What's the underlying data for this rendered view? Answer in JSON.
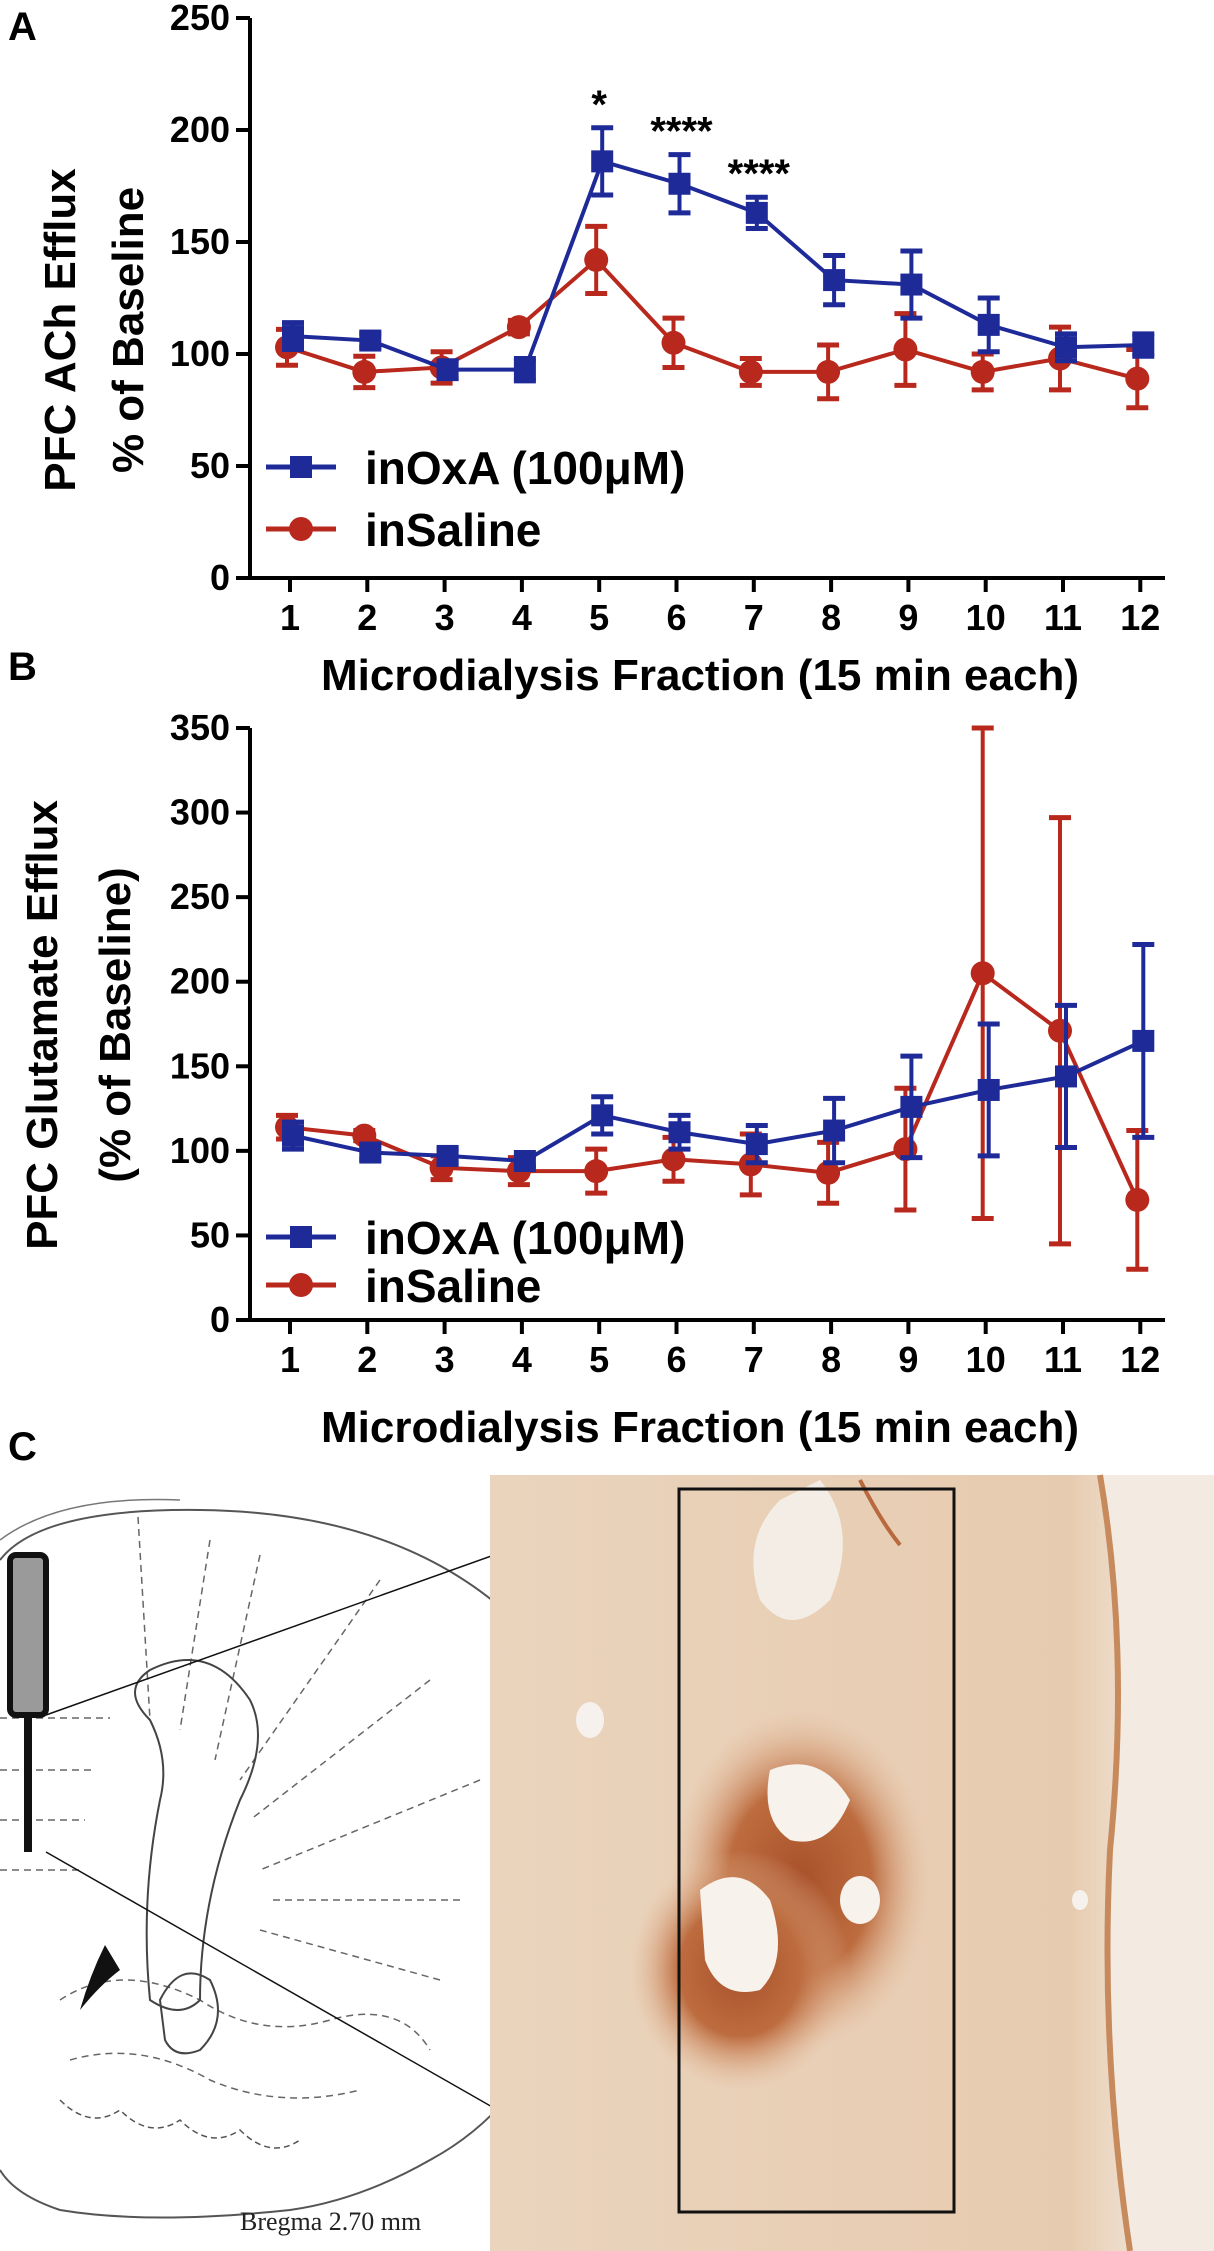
{
  "panels": {
    "a": "A",
    "b": "B",
    "c": "C"
  },
  "colors": {
    "inOxA": "#1f2a99",
    "inSaline": "#b8281d"
  },
  "chart_data": [
    {
      "id": "A",
      "type": "line",
      "xlabel": "Microdialysis Fraction (15 min each)",
      "ylabel_lines": [
        "PFC ACh  Efflux",
        "% of Baseline"
      ],
      "categories": [
        "1",
        "2",
        "3",
        "4",
        "5",
        "6",
        "7",
        "8",
        "9",
        "10",
        "11",
        "12"
      ],
      "ylim": [
        0,
        250
      ],
      "yticks": [
        0,
        50,
        100,
        150,
        200,
        250
      ],
      "legend": [
        "inOxA (100μM)",
        "inSaline"
      ],
      "series": [
        {
          "name": "inOxA (100μM)",
          "marker": "square",
          "color": "#1f2a99",
          "values": [
            108,
            106,
            93,
            93,
            186,
            176,
            163,
            133,
            131,
            113,
            103,
            104
          ],
          "errors": [
            6,
            3,
            4,
            5,
            15,
            13,
            7,
            11,
            15,
            12,
            6,
            5
          ]
        },
        {
          "name": "inSaline",
          "marker": "circle",
          "color": "#b8281d",
          "values": [
            103,
            92,
            94,
            112,
            142,
            105,
            92,
            92,
            102,
            92,
            98,
            89
          ],
          "errors": [
            8,
            7,
            7,
            3,
            15,
            11,
            6,
            12,
            16,
            8,
            14,
            13
          ]
        }
      ],
      "annotations": [
        {
          "label": "*",
          "category": "5"
        },
        {
          "label": "****",
          "category": "6"
        },
        {
          "label": "****",
          "category": "7"
        }
      ]
    },
    {
      "id": "B",
      "type": "line",
      "xlabel": "Microdialysis  Fraction (15 min each)",
      "ylabel_lines": [
        "PFC  Glutamate  Efflux",
        "(% of  Baseline)"
      ],
      "categories": [
        "1",
        "2",
        "3",
        "4",
        "5",
        "6",
        "7",
        "8",
        "9",
        "10",
        "11",
        "12"
      ],
      "ylim": [
        0,
        350
      ],
      "yticks": [
        0,
        50,
        100,
        150,
        200,
        250,
        300,
        350
      ],
      "legend": [
        "inOxA (100μM)",
        "inSaline"
      ],
      "series": [
        {
          "name": "inOxA (100μM)",
          "marker": "square",
          "color": "#1f2a99",
          "values": [
            109,
            99,
            97,
            94,
            121,
            111,
            104,
            112,
            126,
            136,
            144,
            165
          ],
          "errors": [
            8,
            4,
            4,
            3,
            11,
            10,
            11,
            19,
            30,
            39,
            42,
            57
          ]
        },
        {
          "name": "inSaline",
          "marker": "circle",
          "color": "#b8281d",
          "values": [
            114,
            109,
            90,
            88,
            88,
            95,
            92,
            87,
            101,
            205,
            171,
            71
          ],
          "errors": [
            7,
            3,
            7,
            8,
            13,
            13,
            18,
            18,
            36,
            145,
            126,
            41
          ]
        }
      ]
    }
  ],
  "figure_c": {
    "caption": "Bregma 2.70  mm"
  }
}
